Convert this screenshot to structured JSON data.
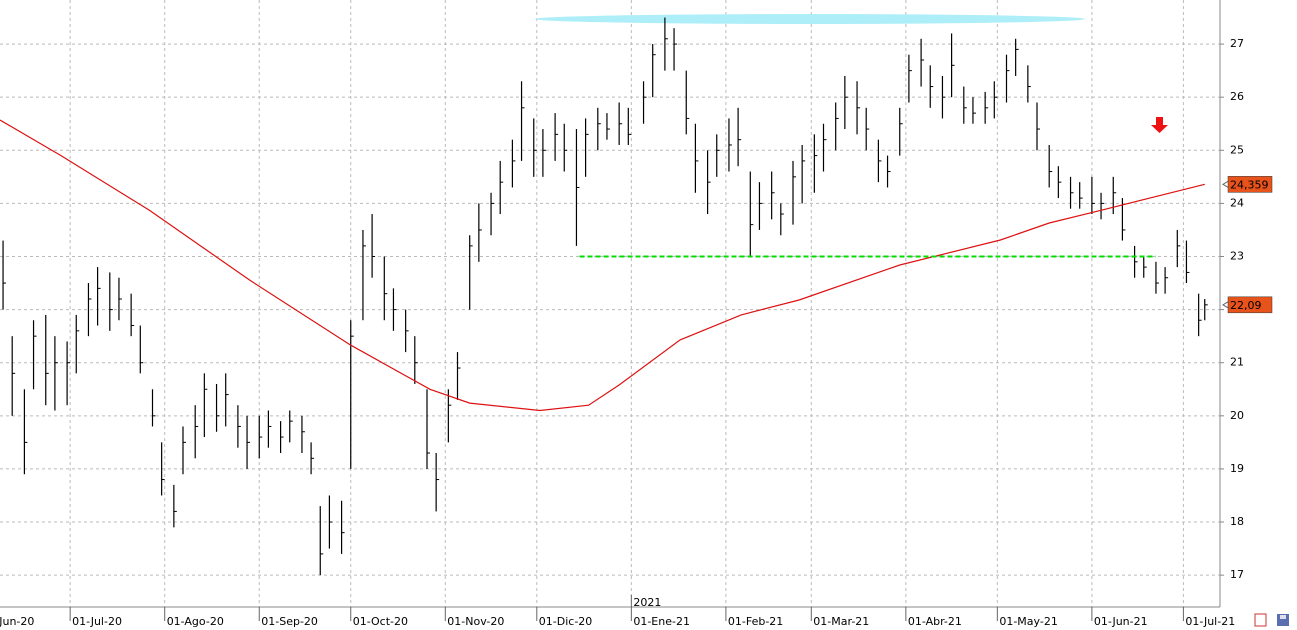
{
  "chart_data": {
    "type": "ohlc",
    "xlim": [
      "2020-06-08",
      "2021-07-13"
    ],
    "ylim": [
      16.4,
      27.83
    ],
    "yticks": [
      17,
      18,
      19,
      20,
      21,
      22,
      23,
      24,
      25,
      26,
      27
    ],
    "xticks": [
      {
        "value": "2020-06-01",
        "label": "01-Jun-20"
      },
      {
        "value": "2020-07-01",
        "label": "01-Jul-20"
      },
      {
        "value": "2020-08-01",
        "label": "01-Ago-20"
      },
      {
        "value": "2020-09-01",
        "label": "01-Sep-20"
      },
      {
        "value": "2020-10-01",
        "label": "01-Oct-20"
      },
      {
        "value": "2020-11-01",
        "label": "01-Nov-20"
      },
      {
        "value": "2020-12-01",
        "label": "01-Dic-20"
      },
      {
        "value": "2021-01-01",
        "label": "01-Ene-21"
      },
      {
        "value": "2021-02-01",
        "label": "01-Feb-21"
      },
      {
        "value": "2021-03-01",
        "label": "01-Mar-21"
      },
      {
        "value": "2021-04-01",
        "label": "01-Abr-21"
      },
      {
        "value": "2021-05-01",
        "label": "01-May-21"
      },
      {
        "value": "2021-06-01",
        "label": "01-Jun-21"
      },
      {
        "value": "2021-07-01",
        "label": "01-Jul-21"
      }
    ],
    "year_label": {
      "value": "2021-01-01",
      "label": "2021"
    },
    "grid": true,
    "price": {
      "color": "#000000",
      "x": [
        "2020-06-09",
        "2020-06-12",
        "2020-06-16",
        "2020-06-19",
        "2020-06-23",
        "2020-06-26",
        "2020-06-30",
        "2020-07-03",
        "2020-07-07",
        "2020-07-10",
        "2020-07-14",
        "2020-07-17",
        "2020-07-21",
        "2020-07-24",
        "2020-07-28",
        "2020-07-31",
        "2020-08-04",
        "2020-08-07",
        "2020-08-11",
        "2020-08-14",
        "2020-08-18",
        "2020-08-21",
        "2020-08-25",
        "2020-08-28",
        "2020-09-01",
        "2020-09-04",
        "2020-09-08",
        "2020-09-11",
        "2020-09-15",
        "2020-09-18",
        "2020-09-21",
        "2020-09-24",
        "2020-09-28",
        "2020-10-01",
        "2020-10-05",
        "2020-10-08",
        "2020-10-12",
        "2020-10-15",
        "2020-10-19",
        "2020-10-22",
        "2020-10-26",
        "2020-10-29",
        "2020-11-02",
        "2020-11-05",
        "2020-11-09",
        "2020-11-12",
        "2020-11-16",
        "2020-11-19",
        "2020-11-23",
        "2020-11-26",
        "2020-11-30",
        "2020-12-03",
        "2020-12-07",
        "2020-12-10",
        "2020-12-14",
        "2020-12-17",
        "2020-12-21",
        "2020-12-24",
        "2020-12-28",
        "2020-12-31",
        "2021-01-05",
        "2021-01-08",
        "2021-01-12",
        "2021-01-15",
        "2021-01-19",
        "2021-01-22",
        "2021-01-26",
        "2021-01-29",
        "2021-02-02",
        "2021-02-05",
        "2021-02-09",
        "2021-02-12",
        "2021-02-16",
        "2021-02-19",
        "2021-02-23",
        "2021-02-26",
        "2021-03-02",
        "2021-03-05",
        "2021-03-09",
        "2021-03-12",
        "2021-03-16",
        "2021-03-19",
        "2021-03-23",
        "2021-03-26",
        "2021-03-30",
        "2021-04-02",
        "2021-04-06",
        "2021-04-09",
        "2021-04-13",
        "2021-04-16",
        "2021-04-20",
        "2021-04-23",
        "2021-04-27",
        "2021-04-30",
        "2021-05-04",
        "2021-05-07",
        "2021-05-11",
        "2021-05-14",
        "2021-05-18",
        "2021-05-21",
        "2021-05-25",
        "2021-05-28",
        "2021-06-01",
        "2021-06-04",
        "2021-06-08",
        "2021-06-11",
        "2021-06-15",
        "2021-06-18",
        "2021-06-22",
        "2021-06-25",
        "2021-06-29",
        "2021-07-02",
        "2021-07-06",
        "2021-07-08"
      ],
      "high": [
        23.3,
        21.5,
        20.5,
        21.8,
        21.9,
        21.5,
        21.4,
        21.9,
        22.5,
        22.8,
        22.7,
        22.6,
        22.3,
        21.7,
        20.5,
        19.5,
        18.7,
        19.8,
        20.2,
        20.8,
        20.6,
        20.8,
        20.2,
        20.0,
        20.0,
        20.1,
        19.9,
        20.1,
        20.0,
        19.5,
        18.3,
        18.5,
        18.4,
        21.8,
        23.5,
        23.8,
        23.0,
        22.4,
        22.0,
        21.5,
        20.5,
        19.3,
        20.5,
        21.2,
        23.4,
        24.0,
        24.2,
        24.8,
        25.2,
        26.3,
        25.6,
        25.4,
        25.7,
        25.5,
        25.4,
        25.6,
        25.8,
        25.7,
        25.9,
        25.8,
        26.3,
        27.0,
        27.5,
        27.3,
        26.5,
        25.5,
        25.0,
        25.3,
        25.6,
        25.8,
        24.6,
        24.4,
        24.6,
        24.0,
        24.8,
        25.1,
        25.3,
        25.5,
        25.9,
        26.4,
        26.3,
        25.8,
        25.2,
        24.9,
        25.8,
        26.8,
        27.1,
        26.6,
        26.4,
        27.2,
        26.2,
        26.0,
        26.1,
        26.3,
        26.8,
        27.1,
        26.6,
        25.9,
        25.1,
        24.7,
        24.5,
        24.4,
        24.5,
        24.2,
        24.5,
        24.1,
        23.2,
        23.0,
        22.9,
        22.8,
        23.5,
        23.3,
        22.3,
        22.2
      ],
      "low": [
        22.0,
        20.0,
        18.9,
        20.5,
        20.2,
        20.1,
        20.2,
        20.8,
        21.5,
        21.7,
        21.6,
        21.8,
        21.5,
        20.8,
        19.8,
        18.5,
        17.9,
        18.9,
        19.2,
        19.6,
        19.7,
        19.8,
        19.4,
        19.0,
        19.2,
        19.4,
        19.3,
        19.5,
        19.3,
        18.9,
        17.0,
        17.5,
        17.4,
        19.0,
        21.8,
        22.6,
        21.8,
        21.6,
        21.2,
        20.6,
        19.0,
        18.2,
        19.5,
        20.3,
        22.0,
        22.9,
        23.4,
        23.8,
        24.3,
        24.8,
        24.5,
        24.5,
        24.8,
        24.6,
        23.2,
        24.5,
        25.0,
        25.2,
        25.1,
        25.1,
        25.5,
        26.0,
        26.5,
        26.5,
        25.3,
        24.2,
        23.8,
        24.5,
        24.6,
        24.7,
        23.0,
        23.5,
        23.7,
        23.4,
        23.6,
        24.0,
        24.2,
        24.6,
        25.0,
        25.4,
        25.3,
        25.0,
        24.4,
        24.3,
        24.9,
        25.9,
        26.2,
        25.8,
        25.6,
        26.0,
        25.5,
        25.5,
        25.5,
        25.6,
        25.9,
        26.4,
        25.9,
        25.0,
        24.3,
        24.1,
        23.9,
        23.9,
        23.8,
        23.7,
        23.8,
        23.3,
        22.6,
        22.6,
        22.3,
        22.3,
        22.8,
        22.5,
        21.5,
        21.8
      ],
      "close": [
        22.5,
        20.8,
        19.5,
        21.5,
        20.8,
        21.0,
        21.0,
        21.6,
        22.2,
        22.4,
        22.0,
        22.2,
        21.7,
        21.0,
        20.0,
        18.8,
        18.2,
        19.5,
        19.8,
        20.5,
        20.0,
        20.4,
        19.8,
        19.5,
        19.6,
        19.8,
        19.6,
        19.9,
        19.7,
        19.2,
        17.4,
        18.0,
        17.8,
        21.5,
        23.2,
        23.0,
        22.3,
        22.0,
        21.6,
        21.0,
        19.3,
        18.8,
        20.2,
        20.9,
        23.2,
        23.5,
        24.0,
        24.4,
        24.8,
        25.8,
        25.0,
        25.0,
        25.3,
        25.0,
        24.3,
        25.3,
        25.5,
        25.4,
        25.5,
        25.3,
        26.0,
        26.8,
        27.1,
        27.0,
        25.6,
        24.8,
        24.4,
        25.0,
        25.1,
        25.2,
        23.6,
        24.0,
        24.2,
        23.8,
        24.5,
        24.8,
        24.9,
        25.2,
        25.6,
        26.0,
        25.8,
        25.4,
        24.8,
        24.6,
        25.5,
        26.5,
        26.7,
        26.2,
        26.0,
        26.6,
        25.8,
        25.7,
        25.8,
        26.0,
        26.5,
        26.9,
        26.2,
        25.4,
        24.6,
        24.4,
        24.2,
        24.1,
        24.0,
        24.0,
        24.2,
        23.5,
        22.9,
        22.8,
        22.5,
        22.6,
        23.2,
        22.7,
        21.8,
        22.09
      ]
    },
    "moving_average": {
      "color": "#dd1111",
      "x": [
        "2020-06-08",
        "2020-06-28",
        "2020-07-27",
        "2020-08-29",
        "2020-10-01",
        "2020-10-27",
        "2020-11-09",
        "2020-12-02",
        "2020-12-18",
        "2020-12-28",
        "2021-01-17",
        "2021-02-06",
        "2021-02-25",
        "2021-03-30",
        "2021-05-02",
        "2021-05-18",
        "2021-06-04",
        "2021-06-20",
        "2021-07-08"
      ],
      "values": [
        25.57,
        24.9,
        23.87,
        22.55,
        21.33,
        20.5,
        20.24,
        20.1,
        20.2,
        20.58,
        21.43,
        21.9,
        22.18,
        22.84,
        23.31,
        23.63,
        23.87,
        24.1,
        24.359
      ]
    },
    "hlines": [
      {
        "value": 23,
        "color": "#00dd00",
        "from": "2020-12-15",
        "to": "2021-06-22"
      }
    ],
    "price_tags": [
      {
        "value": 24.359,
        "label": "24,359"
      },
      {
        "value": 22.09,
        "label": "22,09"
      }
    ],
    "tag_color": "#e8531c"
  }
}
